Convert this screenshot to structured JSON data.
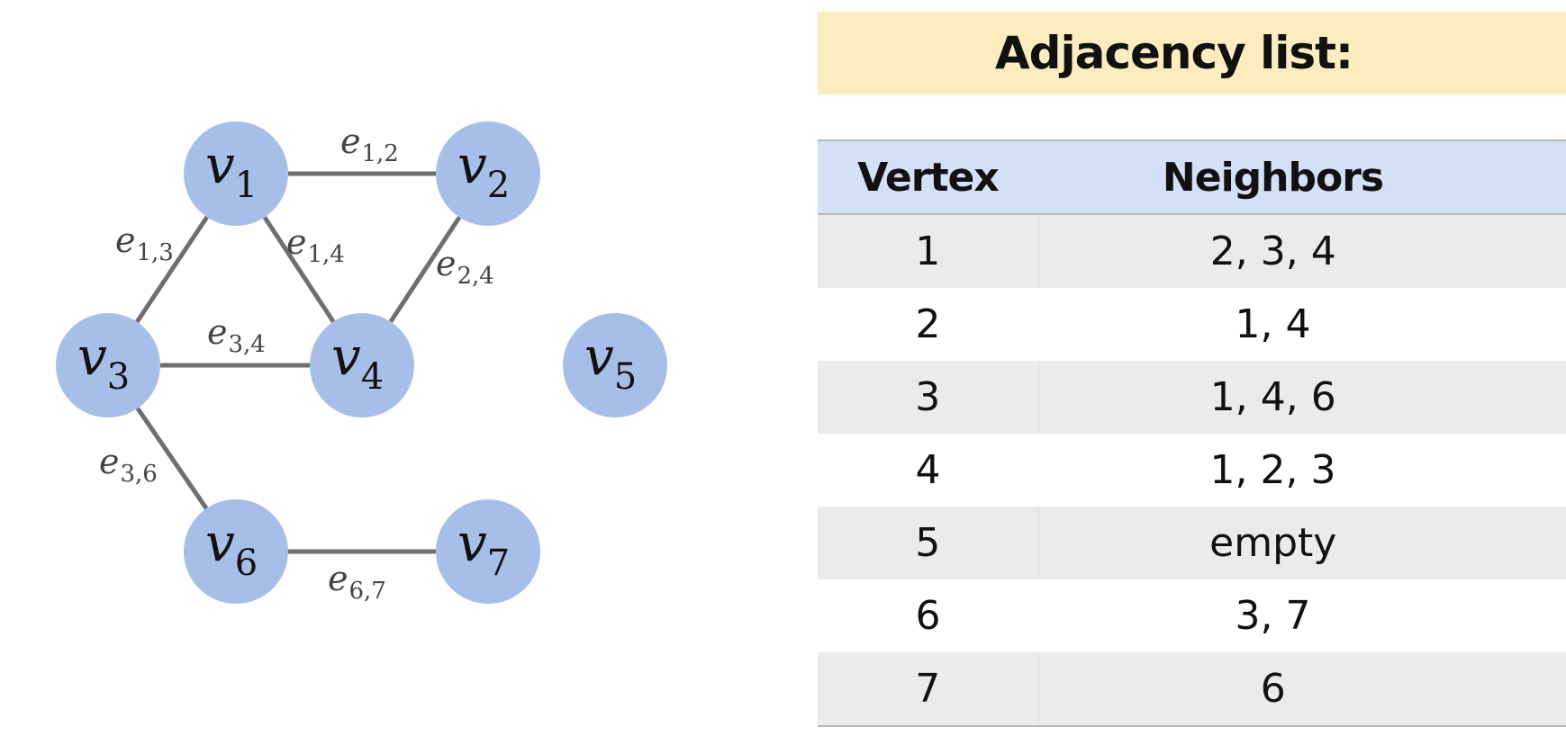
{
  "graph": {
    "vertices": [
      {
        "id": 1,
        "label": "v",
        "sub": "1"
      },
      {
        "id": 2,
        "label": "v",
        "sub": "2"
      },
      {
        "id": 3,
        "label": "v",
        "sub": "3"
      },
      {
        "id": 4,
        "label": "v",
        "sub": "4"
      },
      {
        "id": 5,
        "label": "v",
        "sub": "5"
      },
      {
        "id": 6,
        "label": "v",
        "sub": "6"
      },
      {
        "id": 7,
        "label": "v",
        "sub": "7"
      }
    ],
    "edges": [
      {
        "from": 1,
        "to": 2,
        "label": "e",
        "sub": "1,2"
      },
      {
        "from": 1,
        "to": 3,
        "label": "e",
        "sub": "1,3"
      },
      {
        "from": 1,
        "to": 4,
        "label": "e",
        "sub": "1,4"
      },
      {
        "from": 2,
        "to": 4,
        "label": "e",
        "sub": "2,4"
      },
      {
        "from": 3,
        "to": 4,
        "label": "e",
        "sub": "3,4"
      },
      {
        "from": 3,
        "to": 6,
        "label": "e",
        "sub": "3,6"
      },
      {
        "from": 6,
        "to": 7,
        "label": "e",
        "sub": "6,7"
      }
    ],
    "node_color": "#a7bfe8",
    "edge_color": "#6f6f6f"
  },
  "adjacency": {
    "title": "Adjacency list:",
    "headers": {
      "vertex": "Vertex",
      "neighbors": "Neighbors"
    },
    "rows": [
      {
        "vertex": "1",
        "neighbors": "2, 3, 4"
      },
      {
        "vertex": "2",
        "neighbors": "1, 4"
      },
      {
        "vertex": "3",
        "neighbors": "1, 4, 6"
      },
      {
        "vertex": "4",
        "neighbors": "1, 2, 3"
      },
      {
        "vertex": "5",
        "neighbors": "empty"
      },
      {
        "vertex": "6",
        "neighbors": "3, 7"
      },
      {
        "vertex": "7",
        "neighbors": "6"
      }
    ],
    "banner_color": "#fdecbf",
    "header_color": "#d3e0f5",
    "stripe_color": "#ebebeb"
  }
}
